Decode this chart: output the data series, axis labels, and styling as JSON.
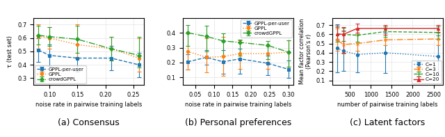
{
  "panel_a": {
    "xlabel": "noise rate in pairwise training labels",
    "ylabel": "τ (test set)",
    "ylim": [
      0.25,
      0.75
    ],
    "yticks": [
      0.3,
      0.4,
      0.5,
      0.6,
      0.7
    ],
    "series": {
      "GPPL-per-user": {
        "x": [
          0.08,
          0.1,
          0.15,
          0.21,
          0.26
        ],
        "y": [
          0.51,
          0.47,
          0.45,
          0.45,
          0.4
        ],
        "yerr_lo": [
          0.09,
          0.08,
          0.1,
          0.09,
          0.09
        ],
        "yerr_hi": [
          0.09,
          0.08,
          0.1,
          0.09,
          0.09
        ],
        "color": "#1f77b4",
        "linestyle": "--",
        "marker": "s"
      },
      "GPPL": {
        "x": [
          0.08,
          0.1,
          0.15,
          0.21,
          0.26
        ],
        "y": [
          0.61,
          0.6,
          0.55,
          0.52,
          0.45
        ],
        "yerr_lo": [
          0.09,
          0.08,
          0.1,
          0.09,
          0.1
        ],
        "yerr_hi": [
          0.09,
          0.08,
          0.15,
          0.09,
          0.15
        ],
        "color": "#ff7f0e",
        "linestyle": ":",
        "marker": "o"
      },
      "crowdGPPL": {
        "x": [
          0.08,
          0.1,
          0.15,
          0.21,
          0.26
        ],
        "y": [
          0.62,
          0.61,
          0.59,
          0.52,
          0.47
        ],
        "yerr_lo": [
          0.07,
          0.07,
          0.1,
          0.09,
          0.09
        ],
        "yerr_hi": [
          0.07,
          0.07,
          0.1,
          0.09,
          0.14
        ],
        "color": "#2ca02c",
        "linestyle": "-.",
        "marker": "D"
      }
    },
    "xticks": [
      0.1,
      0.15,
      0.2,
      0.25
    ],
    "legend_loc": "lower left"
  },
  "panel_b": {
    "xlabel": "noise rate in pairwise training labels",
    "ylabel": "",
    "ylim": [
      0.05,
      0.5
    ],
    "yticks": [
      0.1,
      0.2,
      0.3,
      0.4
    ],
    "series": {
      "GPPL-per-user": {
        "x": [
          0.03,
          0.08,
          0.125,
          0.17,
          0.245,
          0.3
        ],
        "y": [
          0.205,
          0.235,
          0.205,
          0.225,
          0.195,
          0.155
        ],
        "yerr_lo": [
          0.05,
          0.05,
          0.08,
          0.1,
          0.08,
          0.06
        ],
        "yerr_hi": [
          0.05,
          0.05,
          0.08,
          0.07,
          0.05,
          0.06
        ],
        "color": "#1f77b4",
        "linestyle": "--",
        "marker": "s"
      },
      "GPPL": {
        "x": [
          0.03,
          0.08,
          0.125,
          0.17,
          0.245,
          0.3
        ],
        "y": [
          0.275,
          0.235,
          0.24,
          0.26,
          0.26,
          0.27
        ],
        "yerr_lo": [
          0.12,
          0.1,
          0.13,
          0.1,
          0.1,
          0.1
        ],
        "yerr_hi": [
          0.12,
          0.13,
          0.13,
          0.09,
          0.05,
          0.08
        ],
        "color": "#ff7f0e",
        "linestyle": ":",
        "marker": "o"
      },
      "crowdGPPL": {
        "x": [
          0.03,
          0.08,
          0.125,
          0.17,
          0.245,
          0.3
        ],
        "y": [
          0.4,
          0.375,
          0.345,
          0.335,
          0.315,
          0.27
        ],
        "yerr_lo": [
          0.09,
          0.1,
          0.1,
          0.09,
          0.09,
          0.1
        ],
        "yerr_hi": [
          0.05,
          0.07,
          0.05,
          0.02,
          0.03,
          0.08
        ],
        "color": "#2ca02c",
        "linestyle": "-.",
        "marker": "D"
      }
    },
    "xticks": [
      0.05,
      0.1,
      0.15,
      0.2,
      0.25,
      0.3
    ],
    "legend_loc": "upper right"
  },
  "panel_c": {
    "xlabel": "number of pairwise training labels",
    "ylabel": "Mean factor correlation (Pearson's r)",
    "ylim": [
      0.05,
      0.78
    ],
    "yticks": [
      0.1,
      0.2,
      0.3,
      0.4,
      0.5,
      0.6,
      0.7
    ],
    "series": {
      "C=1": {
        "x": [
          200,
          350,
          680,
          1350,
          2600
        ],
        "y": [
          0.45,
          0.42,
          0.38,
          0.4,
          0.36
        ],
        "yerr_lo": [
          0.26,
          0.22,
          0.19,
          0.22,
          0.2
        ],
        "yerr_hi": [
          0.26,
          0.22,
          0.22,
          0.22,
          0.23
        ],
        "color": "#1f77b4",
        "linestyle": ":",
        "marker": "o"
      },
      "C=3": {
        "x": [
          200,
          350,
          680,
          1350,
          2600
        ],
        "y": [
          0.54,
          0.49,
          0.5,
          0.54,
          0.55
        ],
        "yerr_lo": [
          0.12,
          0.1,
          0.08,
          0.06,
          0.07
        ],
        "yerr_hi": [
          0.12,
          0.14,
          0.1,
          0.13,
          0.07
        ],
        "color": "#ff7f0e",
        "linestyle": "-.",
        "marker": "x"
      },
      "C=10": {
        "x": [
          200,
          350,
          680,
          1350,
          2600
        ],
        "y": [
          0.6,
          0.6,
          0.59,
          0.63,
          0.62
        ],
        "yerr_lo": [
          0.08,
          0.07,
          0.07,
          0.06,
          0.07
        ],
        "yerr_hi": [
          0.08,
          0.07,
          0.07,
          0.06,
          0.07
        ],
        "color": "#2ca02c",
        "linestyle": "--",
        "marker": "+"
      },
      "C=20": {
        "x": [
          200,
          350,
          680,
          1350,
          2600
        ],
        "y": [
          0.605,
          0.6,
          0.665,
          0.665,
          0.665
        ],
        "yerr_lo": [
          0.06,
          0.2,
          0.05,
          0.07,
          0.04
        ],
        "yerr_hi": [
          0.09,
          0.08,
          0.05,
          0.04,
          0.04
        ],
        "color": "#d62728",
        "linestyle": "-",
        "marker": "^"
      }
    },
    "xticks": [
      500,
      1000,
      1500,
      2000,
      2500
    ],
    "legend_loc": "lower right"
  },
  "captions": [
    "(a) Consensus",
    "(b) Personal preferences",
    "(c) Latent factors"
  ],
  "caption_fontsize": 9
}
